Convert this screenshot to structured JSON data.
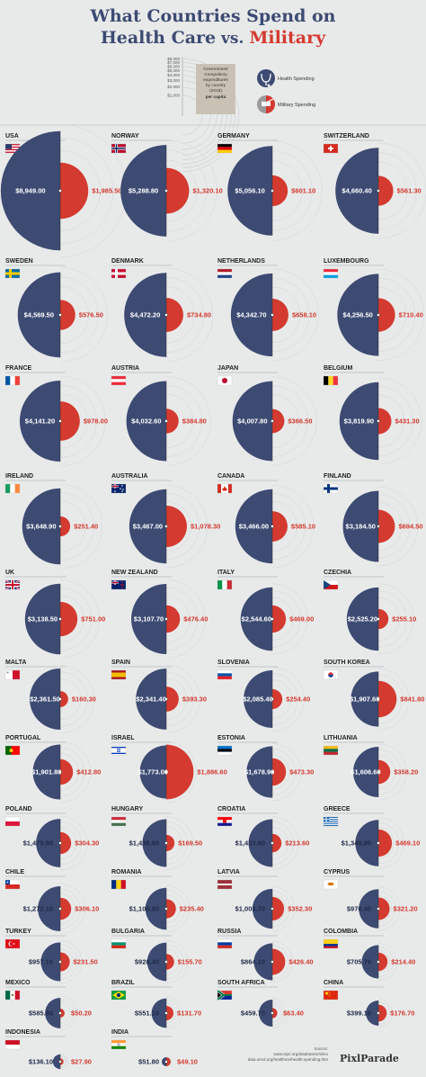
{
  "title": {
    "line1": "What Countries Spend on",
    "health": "Health Care",
    "vs": " vs. ",
    "military": "Military"
  },
  "legend": {
    "scale": [
      "$1,000",
      "$2,000",
      "$3,000",
      "$4,000",
      "$5,000",
      "$6,000",
      "$7,000",
      "$8,000"
    ],
    "box_lines": [
      "Government/",
      "Compulsory",
      "expenditures",
      "by country",
      "(2018)"
    ],
    "box_bold": "per capita",
    "health_label": "Health Spending",
    "military_label": "Military Spending",
    "health_icon": "stethoscope-icon",
    "military_icon": "tank-icon"
  },
  "colors": {
    "health": "#3d4b73",
    "military": "#d43a2f",
    "background": "#e8eaea"
  },
  "chart_data": {
    "type": "semicircle-comparison",
    "title": "What Countries Spend on Health Care vs. Military",
    "series": [
      {
        "name": "Health Spending"
      },
      {
        "name": "Military Spending"
      }
    ],
    "countries": [
      {
        "name": "USA",
        "health": 8949.0,
        "military": 1985.5,
        "health_label": "$8,949.00",
        "military_label": "$1,985.50"
      },
      {
        "name": "NORWAY",
        "health": 5288.8,
        "military": 1320.1,
        "health_label": "$5,288.80",
        "military_label": "$1,320.10"
      },
      {
        "name": "GERMANY",
        "health": 5056.1,
        "military": 601.1,
        "health_label": "$5,056.10",
        "military_label": "$601.10"
      },
      {
        "name": "SWITZERLAND",
        "health": 4660.4,
        "military": 561.3,
        "health_label": "$4,660.40",
        "military_label": "$561.30"
      },
      {
        "name": "SWEDEN",
        "health": 4569.5,
        "military": 576.5,
        "health_label": "$4,569.50",
        "military_label": "$576.50"
      },
      {
        "name": "DENMARK",
        "health": 4472.2,
        "military": 734.8,
        "health_label": "$4,472.20",
        "military_label": "$734.80"
      },
      {
        "name": "NETHERLANDS",
        "health": 4342.7,
        "military": 658.1,
        "health_label": "$4,342.70",
        "military_label": "$658.10"
      },
      {
        "name": "LUXEMBOURG",
        "health": 4256.5,
        "military": 710.4,
        "health_label": "$4,256.50",
        "military_label": "$710.40"
      },
      {
        "name": "FRANCE",
        "health": 4141.2,
        "military": 978.0,
        "health_label": "$4,141.20",
        "military_label": "$978.00"
      },
      {
        "name": "AUSTRIA",
        "health": 4032.6,
        "military": 384.8,
        "health_label": "$4,032.60",
        "military_label": "$384.80"
      },
      {
        "name": "JAPAN",
        "health": 4007.8,
        "military": 366.5,
        "health_label": "$4,007.80",
        "military_label": "$366.50"
      },
      {
        "name": "BELGIUM",
        "health": 3819.9,
        "military": 431.3,
        "health_label": "$3,819.90",
        "military_label": "$431.30"
      },
      {
        "name": "IRELAND",
        "health": 3648.9,
        "military": 251.4,
        "health_label": "$3,648.90",
        "military_label": "$251.40"
      },
      {
        "name": "AUSTRALIA",
        "health": 3467.0,
        "military": 1078.3,
        "health_label": "$3,467.00",
        "military_label": "$1,078.30"
      },
      {
        "name": "CANADA",
        "health": 3466.0,
        "military": 585.1,
        "health_label": "$3,466.00",
        "military_label": "$585.10"
      },
      {
        "name": "FINLAND",
        "health": 3184.5,
        "military": 694.5,
        "health_label": "$3,184.50",
        "military_label": "$694.50"
      },
      {
        "name": "UK",
        "health": 3138.5,
        "military": 751.0,
        "health_label": "$3,138.50",
        "military_label": "$751.00"
      },
      {
        "name": "NEW ZEALAND",
        "health": 3107.7,
        "military": 476.4,
        "health_label": "$3,107.70",
        "military_label": "$476.40"
      },
      {
        "name": "ITALY",
        "health": 2544.6,
        "military": 469.0,
        "health_label": "$2,544.60",
        "military_label": "$469.00"
      },
      {
        "name": "CZECHIA",
        "health": 2525.2,
        "military": 255.1,
        "health_label": "$2,525.20",
        "military_label": "$255.10"
      },
      {
        "name": "MALTA",
        "health": 2361.5,
        "military": 160.3,
        "health_label": "$2,361.50",
        "military_label": "$160.30"
      },
      {
        "name": "SPAIN",
        "health": 2341.4,
        "military": 393.3,
        "health_label": "$2,341.40",
        "military_label": "$393.30"
      },
      {
        "name": "SLOVENIA",
        "health": 2085.4,
        "military": 254.4,
        "health_label": "$2,085.40",
        "military_label": "$254.40"
      },
      {
        "name": "SOUTH KOREA",
        "health": 1907.6,
        "military": 841.8,
        "health_label": "$1,907.60",
        "military_label": "$841.80"
      },
      {
        "name": "PORTUGAL",
        "health": 1901.8,
        "military": 412.8,
        "health_label": "$1,901.80",
        "military_label": "$412.80"
      },
      {
        "name": "ISRAEL",
        "health": 1773.0,
        "military": 1886.6,
        "health_label": "$1,773.00",
        "military_label": "$1,886.60"
      },
      {
        "name": "ESTONIA",
        "health": 1678.9,
        "military": 473.3,
        "health_label": "$1,678.90",
        "military_label": "$473.30"
      },
      {
        "name": "LITHUANIA",
        "health": 1606.6,
        "military": 358.2,
        "health_label": "$1,606.60",
        "military_label": "$358.20"
      },
      {
        "name": "POLAND",
        "health": 1475.9,
        "military": 304.3,
        "health_label": "$1,475.90",
        "military_label": "$304.30"
      },
      {
        "name": "HUNGARY",
        "health": 1438.8,
        "military": 169.5,
        "health_label": "$1,438.80",
        "military_label": "$169.50"
      },
      {
        "name": "CROATIA",
        "health": 1433.8,
        "military": 213.6,
        "health_label": "$1,433.80",
        "military_label": "$213.60"
      },
      {
        "name": "GREECE",
        "health": 1348.8,
        "military": 469.1,
        "health_label": "$1,348.80",
        "military_label": "$469.10"
      },
      {
        "name": "CHILE",
        "health": 1272.1,
        "military": 306.1,
        "health_label": "$1,272.10",
        "military_label": "$306.10"
      },
      {
        "name": "ROMANIA",
        "health": 1100.8,
        "military": 235.4,
        "health_label": "$1,100.80",
        "military_label": "$235.40"
      },
      {
        "name": "LATVIA",
        "health": 1003.7,
        "military": 352.3,
        "health_label": "$1,003.70",
        "military_label": "$352.30"
      },
      {
        "name": "CYPRUS",
        "health": 970.4,
        "military": 321.2,
        "health_label": "$970.40",
        "military_label": "$321.20"
      },
      {
        "name": "TURKEY",
        "health": 957.1,
        "military": 231.5,
        "health_label": "$957.10",
        "military_label": "$231.50"
      },
      {
        "name": "BULGARIA",
        "health": 928.4,
        "military": 155.7,
        "health_label": "$928.40",
        "military_label": "$155.70"
      },
      {
        "name": "RUSSIA",
        "health": 864.1,
        "military": 426.4,
        "health_label": "$864.10",
        "military_label": "$426.40"
      },
      {
        "name": "COLOMBIA",
        "health": 705.7,
        "military": 214.4,
        "health_label": "$705.70",
        "military_label": "$214.40"
      },
      {
        "name": "MEXICO",
        "health": 585.8,
        "military": 50.2,
        "health_label": "$585.80",
        "military_label": "$50.20"
      },
      {
        "name": "BRAZIL",
        "health": 551.1,
        "military": 131.7,
        "health_label": "$551.10",
        "military_label": "$131.70"
      },
      {
        "name": "SOUTH AFRICA",
        "health": 459.7,
        "military": 63.4,
        "health_label": "$459.70",
        "military_label": "$63.40"
      },
      {
        "name": "CHINA",
        "health": 399.1,
        "military": 176.7,
        "health_label": "$399.10",
        "military_label": "$176.70"
      },
      {
        "name": "INDONESIA",
        "health": 136.1,
        "military": 27.9,
        "health_label": "$136.10",
        "military_label": "$27.90"
      },
      {
        "name": "INDIA",
        "health": 51.8,
        "military": 49.1,
        "health_label": "$51.80",
        "military_label": "$49.10"
      }
    ]
  },
  "source": {
    "label": "Source:",
    "lines": [
      "www.sipri.org/databases/milex",
      "data.oecd.org/healthres/health-spending.htm"
    ]
  },
  "brand": "PixlParade"
}
